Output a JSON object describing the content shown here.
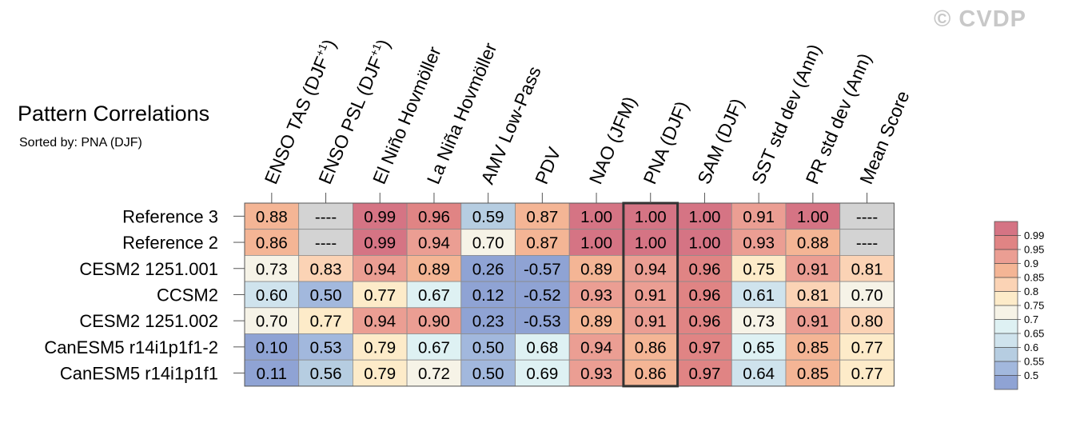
{
  "watermark": "© CVDP",
  "title": "Pattern Correlations",
  "subtitle": "Sorted by: PNA (DJF)",
  "chart_data": {
    "type": "heatmap",
    "columns": [
      {
        "label": "ENSO TAS (DJF",
        "sup": "+1",
        "close": ")"
      },
      {
        "label": "ENSO PSL (DJF",
        "sup": "+1",
        "close": ")"
      },
      {
        "label": "El Niño Hovmöller",
        "sup": "",
        "close": ""
      },
      {
        "label": "La Niña Hovmöller",
        "sup": "",
        "close": ""
      },
      {
        "label": "AMV Low-Pass",
        "sup": "",
        "close": ""
      },
      {
        "label": "PDV",
        "sup": "",
        "close": ""
      },
      {
        "label": "NAO (JFM)",
        "sup": "",
        "close": ""
      },
      {
        "label": "PNA (DJF)",
        "sup": "",
        "close": ""
      },
      {
        "label": "SAM (DJF)",
        "sup": "",
        "close": ""
      },
      {
        "label": "SST std dev (Ann)",
        "sup": "",
        "close": ""
      },
      {
        "label": "PR std dev (Ann)",
        "sup": "",
        "close": ""
      },
      {
        "label": "Mean Score",
        "sup": "",
        "close": ""
      }
    ],
    "rows": [
      "Reference 3",
      "Reference 2",
      "CESM2 1251.001",
      "CCSM2",
      "CESM2 1251.002",
      "CanESM5 r14i1p1f1-2",
      "CanESM5 r14i1p1f1"
    ],
    "values": [
      [
        0.88,
        null,
        0.99,
        0.96,
        0.59,
        0.87,
        1.0,
        1.0,
        1.0,
        0.91,
        1.0,
        null
      ],
      [
        0.86,
        null,
        0.99,
        0.94,
        0.7,
        0.87,
        1.0,
        1.0,
        1.0,
        0.93,
        0.88,
        null
      ],
      [
        0.73,
        0.83,
        0.94,
        0.89,
        0.26,
        -0.57,
        0.89,
        0.94,
        0.96,
        0.75,
        0.91,
        0.81
      ],
      [
        0.6,
        0.5,
        0.77,
        0.67,
        0.12,
        -0.52,
        0.93,
        0.91,
        0.96,
        0.61,
        0.81,
        0.7
      ],
      [
        0.7,
        0.77,
        0.94,
        0.9,
        0.23,
        -0.53,
        0.89,
        0.91,
        0.96,
        0.73,
        0.91,
        0.8
      ],
      [
        0.1,
        0.53,
        0.79,
        0.67,
        0.5,
        0.68,
        0.94,
        0.86,
        0.97,
        0.65,
        0.85,
        0.77
      ],
      [
        0.11,
        0.56,
        0.79,
        0.72,
        0.5,
        0.69,
        0.93,
        0.86,
        0.97,
        0.64,
        0.85,
        0.77
      ]
    ],
    "missing_label": "----",
    "highlight_column": "PNA (DJF)",
    "colorbar": {
      "tick_labels": [
        "0.99",
        "0.95",
        "0.9",
        "0.85",
        "0.8",
        "0.75",
        "0.7",
        "0.65",
        "0.6",
        "0.55",
        "0.5"
      ],
      "boundaries": [
        0.99,
        0.95,
        0.9,
        0.85,
        0.8,
        0.75,
        0.7,
        0.65,
        0.6,
        0.55,
        0.5
      ],
      "colors": [
        "#d57484",
        "#e08484",
        "#eb9e93",
        "#f4b595",
        "#fbd3b5",
        "#fdebc9",
        "#f6f3e7",
        "#def1f3",
        "#cfe3ed",
        "#b6cde1",
        "#a2b8dd",
        "#8fa3d4"
      ]
    },
    "missing_color": "#d3d3d3"
  }
}
